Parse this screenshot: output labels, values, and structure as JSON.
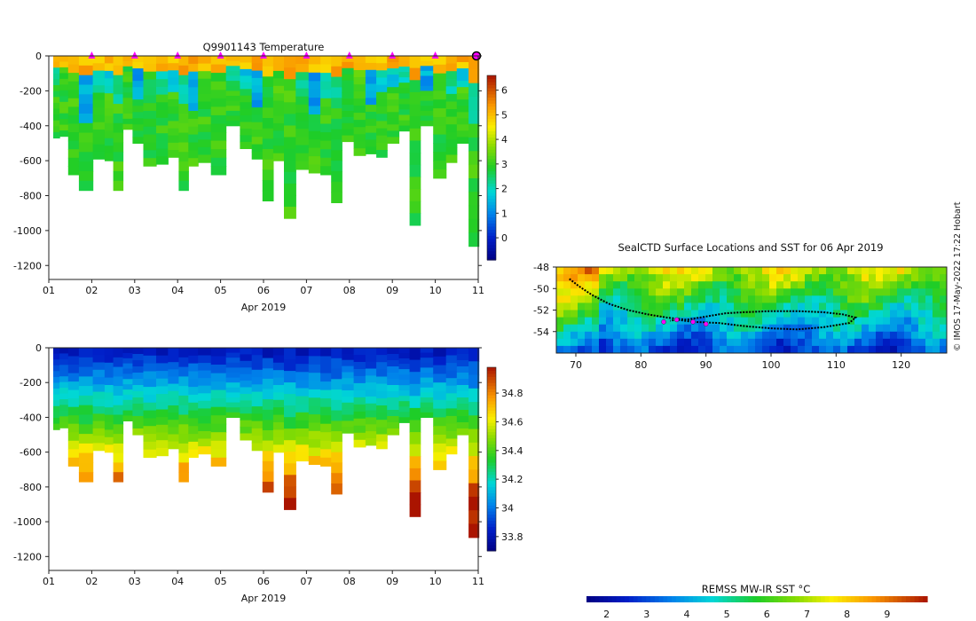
{
  "chart_data": [
    {
      "type": "heatmap",
      "id": "temperature-section",
      "title": "Q9901143  Temperature",
      "xlabel": "Apr 2019",
      "x_tick_labels": [
        "01",
        "02",
        "03",
        "04",
        "05",
        "06",
        "07",
        "08",
        "09",
        "10",
        "11"
      ],
      "xlim": [
        1,
        11
      ],
      "ylim": [
        -1280,
        0
      ],
      "y_ticks": [
        0,
        -200,
        -400,
        -600,
        -800,
        -1000,
        -1200
      ],
      "colorbar": {
        "min": -0.9,
        "max": 6.6,
        "ticks": [
          0,
          1,
          2,
          3,
          4,
          5,
          6
        ]
      },
      "marker_days": [
        2,
        3,
        4,
        5,
        6,
        7,
        8,
        9,
        10
      ],
      "last_marker_day": 11,
      "profiles": [
        {
          "day": 1.15,
          "depth": 470
        },
        {
          "day": 1.35,
          "depth": 460
        },
        {
          "day": 1.55,
          "depth": 680
        },
        {
          "day": 1.85,
          "depth": 770
        },
        {
          "day": 2.2,
          "depth": 590
        },
        {
          "day": 2.4,
          "depth": 600
        },
        {
          "day": 2.6,
          "depth": 770
        },
        {
          "day": 2.85,
          "depth": 420
        },
        {
          "day": 3.05,
          "depth": 500
        },
        {
          "day": 3.35,
          "depth": 630
        },
        {
          "day": 3.65,
          "depth": 620
        },
        {
          "day": 3.9,
          "depth": 580
        },
        {
          "day": 4.15,
          "depth": 770
        },
        {
          "day": 4.35,
          "depth": 630
        },
        {
          "day": 4.6,
          "depth": 610
        },
        {
          "day": 4.95,
          "depth": 680
        },
        {
          "day": 5.3,
          "depth": 400
        },
        {
          "day": 5.6,
          "depth": 530
        },
        {
          "day": 5.85,
          "depth": 590
        },
        {
          "day": 6.1,
          "depth": 830
        },
        {
          "day": 6.35,
          "depth": 600
        },
        {
          "day": 6.6,
          "depth": 930
        },
        {
          "day": 6.9,
          "depth": 650
        },
        {
          "day": 7.2,
          "depth": 670
        },
        {
          "day": 7.45,
          "depth": 680
        },
        {
          "day": 7.7,
          "depth": 840
        },
        {
          "day": 7.95,
          "depth": 490
        },
        {
          "day": 8.25,
          "depth": 570
        },
        {
          "day": 8.5,
          "depth": 560
        },
        {
          "day": 8.75,
          "depth": 580
        },
        {
          "day": 9.0,
          "depth": 500
        },
        {
          "day": 9.3,
          "depth": 430
        },
        {
          "day": 9.5,
          "depth": 970
        },
        {
          "day": 9.8,
          "depth": 400
        },
        {
          "day": 10.1,
          "depth": 700
        },
        {
          "day": 10.4,
          "depth": 610
        },
        {
          "day": 10.6,
          "depth": 500
        },
        {
          "day": 10.95,
          "depth": 1090
        }
      ]
    },
    {
      "type": "heatmap",
      "id": "salinity-section",
      "title": "",
      "xlabel": "Apr 2019",
      "x_tick_labels": [
        "01",
        "02",
        "03",
        "04",
        "05",
        "06",
        "07",
        "08",
        "09",
        "10",
        "11"
      ],
      "xlim": [
        1,
        11
      ],
      "ylim": [
        -1280,
        0
      ],
      "y_ticks": [
        0,
        -200,
        -400,
        -600,
        -800,
        -1000,
        -1200
      ],
      "colorbar": {
        "min": 33.7,
        "max": 34.98,
        "ticks": [
          33.8,
          34,
          34.2,
          34.4,
          34.6,
          34.8
        ],
        "tick_labels": [
          "33.8",
          "34",
          "34.2",
          "34.4",
          "34.6",
          "34.8"
        ]
      }
    },
    {
      "type": "heatmap",
      "id": "sst-map",
      "title": "SealCTD Surface Locations and SST for 06 Apr 2019",
      "xlim": [
        67,
        127
      ],
      "ylim": [
        -56,
        -48
      ],
      "x_ticks": [
        70,
        80,
        90,
        100,
        110,
        120
      ],
      "y_ticks": [
        -48,
        -50,
        -52,
        -54
      ],
      "track": [
        [
          69,
          -49.1
        ],
        [
          70.5,
          -49.8
        ],
        [
          72.5,
          -50.6
        ],
        [
          75,
          -51.4
        ],
        [
          78,
          -52
        ],
        [
          81,
          -52.4
        ],
        [
          84,
          -52.7
        ],
        [
          87,
          -52.9
        ],
        [
          90,
          -52.6
        ],
        [
          93,
          -52.3
        ],
        [
          96,
          -52.2
        ],
        [
          100,
          -52.1
        ],
        [
          104,
          -52.1
        ],
        [
          108,
          -52.2
        ],
        [
          111,
          -52.4
        ],
        [
          113,
          -52.7
        ],
        [
          112,
          -53.2
        ],
        [
          108,
          -53.6
        ],
        [
          104,
          -53.8
        ],
        [
          100,
          -53.7
        ],
        [
          96,
          -53.5
        ],
        [
          92,
          -53.2
        ],
        [
          88,
          -53.1
        ],
        [
          85.5,
          -52.9
        ],
        [
          84.5,
          -53
        ]
      ],
      "profile_locations": [
        [
          83.5,
          -53.1
        ],
        [
          85.5,
          -52.9
        ],
        [
          88,
          -53.1
        ],
        [
          90,
          -53.3
        ]
      ],
      "colorbar": {
        "label": "REMSS MW-IR SST °C",
        "min": 1.5,
        "max": 10,
        "ticks": [
          2,
          3,
          4,
          5,
          6,
          7,
          8,
          9
        ]
      }
    }
  ],
  "credit": "© IMOS 17-May-2022 17:22 Hobart",
  "colors": {
    "marker": "#ff00ff",
    "track": "#000000"
  }
}
